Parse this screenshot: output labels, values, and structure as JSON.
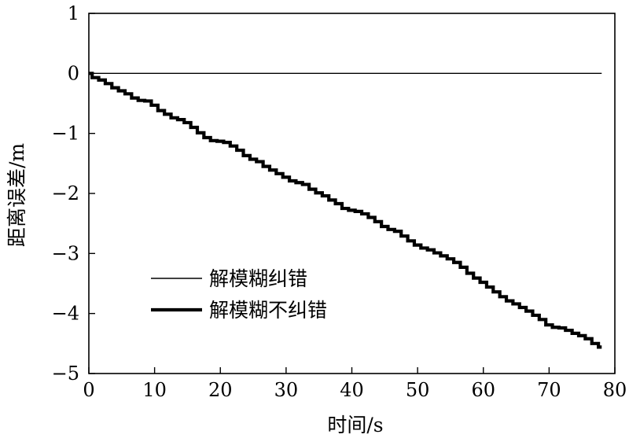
{
  "chart_data": {
    "type": "line",
    "xlabel": "时间/s",
    "ylabel": "距离误差/m",
    "xlim": [
      0,
      80
    ],
    "ylim": [
      -5,
      1
    ],
    "xticks": [
      0,
      10,
      20,
      30,
      40,
      50,
      60,
      70,
      80
    ],
    "yticks": [
      1,
      0,
      -1,
      -2,
      -3,
      -4,
      -5
    ],
    "ytick_labels": [
      "1",
      "0",
      "−1",
      "−2",
      "−3",
      "−4",
      "−5"
    ],
    "grid": false,
    "legend_position": "lower-left",
    "series": [
      {
        "name": "解模糊纠错",
        "style": "thin",
        "color": "#000000",
        "x": [
          0,
          78
        ],
        "y": [
          0,
          0
        ]
      },
      {
        "name": "解模糊不纠错",
        "style": "thick",
        "color": "#000000",
        "x": [
          0,
          1,
          2,
          3,
          4,
          5,
          6,
          7,
          8,
          9,
          10,
          11,
          12,
          13,
          14,
          15,
          16,
          17,
          18,
          19,
          20,
          21,
          22,
          23,
          24,
          25,
          26,
          27,
          28,
          29,
          30,
          31,
          32,
          33,
          34,
          35,
          36,
          37,
          38,
          39,
          40,
          41,
          42,
          43,
          44,
          45,
          46,
          47,
          48,
          49,
          50,
          51,
          52,
          53,
          54,
          55,
          56,
          57,
          58,
          59,
          60,
          61,
          62,
          63,
          64,
          65,
          66,
          67,
          68,
          69,
          70,
          71,
          72,
          73,
          74,
          75,
          76,
          77,
          78
        ],
        "y": [
          0,
          -0.07,
          -0.11,
          -0.17,
          -0.24,
          -0.29,
          -0.34,
          -0.41,
          -0.45,
          -0.46,
          -0.53,
          -0.62,
          -0.68,
          -0.74,
          -0.77,
          -0.82,
          -0.9,
          -0.99,
          -1.07,
          -1.12,
          -1.13,
          -1.15,
          -1.21,
          -1.28,
          -1.37,
          -1.43,
          -1.47,
          -1.55,
          -1.61,
          -1.67,
          -1.73,
          -1.79,
          -1.82,
          -1.85,
          -1.93,
          -1.99,
          -2.04,
          -2.11,
          -2.17,
          -2.25,
          -2.28,
          -2.3,
          -2.34,
          -2.4,
          -2.47,
          -2.55,
          -2.6,
          -2.63,
          -2.71,
          -2.79,
          -2.86,
          -2.91,
          -2.94,
          -2.99,
          -3.04,
          -3.09,
          -3.15,
          -3.23,
          -3.33,
          -3.41,
          -3.48,
          -3.56,
          -3.64,
          -3.72,
          -3.79,
          -3.84,
          -3.9,
          -3.96,
          -4.03,
          -4.1,
          -4.19,
          -4.23,
          -4.24,
          -4.28,
          -4.33,
          -4.37,
          -4.42,
          -4.5,
          -4.56
        ]
      }
    ]
  }
}
